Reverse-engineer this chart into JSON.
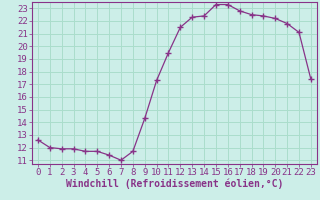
{
  "x": [
    0,
    1,
    2,
    3,
    4,
    5,
    6,
    7,
    8,
    9,
    10,
    11,
    12,
    13,
    14,
    15,
    16,
    17,
    18,
    19,
    20,
    21,
    22,
    23
  ],
  "y": [
    12.6,
    12.0,
    11.9,
    11.9,
    11.7,
    11.7,
    11.4,
    11.0,
    11.7,
    14.3,
    17.3,
    19.5,
    21.5,
    22.3,
    22.4,
    23.3,
    23.3,
    22.8,
    22.5,
    22.4,
    22.2,
    21.8,
    21.1,
    17.4
  ],
  "line_color": "#883388",
  "marker": "+",
  "marker_size": 4,
  "bg_color": "#cceee8",
  "grid_color": "#aaddcc",
  "xlabel": "Windchill (Refroidissement éolien,°C)",
  "xlim_min": -0.5,
  "xlim_max": 23.5,
  "ylim_min": 10.7,
  "ylim_max": 23.5,
  "yticks": [
    11,
    12,
    13,
    14,
    15,
    16,
    17,
    18,
    19,
    20,
    21,
    22,
    23
  ],
  "xticks": [
    0,
    1,
    2,
    3,
    4,
    5,
    6,
    7,
    8,
    9,
    10,
    11,
    12,
    13,
    14,
    15,
    16,
    17,
    18,
    19,
    20,
    21,
    22,
    23
  ],
  "label_color": "#883388",
  "font_size": 6.5
}
